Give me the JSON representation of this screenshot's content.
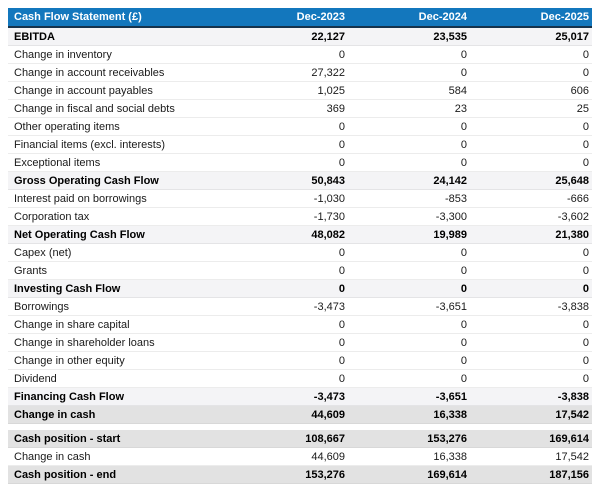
{
  "table": {
    "title": "Cash Flow Statement (£)",
    "columns": [
      "Dec-2023",
      "Dec-2024",
      "Dec-2025"
    ],
    "colors": {
      "header_bg": "#1377bd",
      "header_text": "#ffffff",
      "header_border": "#15334d",
      "subtotal_bg": "#f4f4f6",
      "emphasis_bg": "#e2e2e2"
    },
    "rows": [
      {
        "label": "EBITDA",
        "values": [
          "22,127",
          "23,535",
          "25,017"
        ],
        "style": "subtotal"
      },
      {
        "label": "Change in inventory",
        "values": [
          "0",
          "0",
          "0"
        ],
        "style": "normal"
      },
      {
        "label": "Change in account receivables",
        "values": [
          "27,322",
          "0",
          "0"
        ],
        "style": "normal"
      },
      {
        "label": "Change in account payables",
        "values": [
          "1,025",
          "584",
          "606"
        ],
        "style": "normal"
      },
      {
        "label": "Change in fiscal and social debts",
        "values": [
          "369",
          "23",
          "25"
        ],
        "style": "normal"
      },
      {
        "label": "Other operating items",
        "values": [
          "0",
          "0",
          "0"
        ],
        "style": "normal"
      },
      {
        "label": "Financial items (excl. interests)",
        "values": [
          "0",
          "0",
          "0"
        ],
        "style": "normal"
      },
      {
        "label": "Exceptional items",
        "values": [
          "0",
          "0",
          "0"
        ],
        "style": "normal"
      },
      {
        "label": "Gross Operating Cash Flow",
        "values": [
          "50,843",
          "24,142",
          "25,648"
        ],
        "style": "subtotal"
      },
      {
        "label": "Interest paid on borrowings",
        "values": [
          "-1,030",
          "-853",
          "-666"
        ],
        "style": "normal"
      },
      {
        "label": "Corporation tax",
        "values": [
          "-1,730",
          "-3,300",
          "-3,602"
        ],
        "style": "normal"
      },
      {
        "label": "Net Operating Cash Flow",
        "values": [
          "48,082",
          "19,989",
          "21,380"
        ],
        "style": "subtotal"
      },
      {
        "label": "Capex (net)",
        "values": [
          "0",
          "0",
          "0"
        ],
        "style": "normal"
      },
      {
        "label": "Grants",
        "values": [
          "0",
          "0",
          "0"
        ],
        "style": "normal"
      },
      {
        "label": "Investing Cash Flow",
        "values": [
          "0",
          "0",
          "0"
        ],
        "style": "subtotal"
      },
      {
        "label": "Borrowings",
        "values": [
          "-3,473",
          "-3,651",
          "-3,838"
        ],
        "style": "normal"
      },
      {
        "label": "Change in share capital",
        "values": [
          "0",
          "0",
          "0"
        ],
        "style": "normal"
      },
      {
        "label": "Change in shareholder loans",
        "values": [
          "0",
          "0",
          "0"
        ],
        "style": "normal"
      },
      {
        "label": "Change in other equity",
        "values": [
          "0",
          "0",
          "0"
        ],
        "style": "normal"
      },
      {
        "label": "Dividend",
        "values": [
          "0",
          "0",
          "0"
        ],
        "style": "normal"
      },
      {
        "label": "Financing Cash Flow",
        "values": [
          "-3,473",
          "-3,651",
          "-3,838"
        ],
        "style": "subtotal"
      },
      {
        "label": "Change in cash",
        "values": [
          "44,609",
          "16,338",
          "17,542"
        ],
        "style": "emphasis"
      }
    ],
    "footer_rows": [
      {
        "label": "Cash position - start",
        "values": [
          "108,667",
          "153,276",
          "169,614"
        ],
        "style": "emphasis"
      },
      {
        "label": "Change in cash",
        "values": [
          "44,609",
          "16,338",
          "17,542"
        ],
        "style": "normal"
      },
      {
        "label": "Cash position - end",
        "values": [
          "153,276",
          "169,614",
          "187,156"
        ],
        "style": "emphasis"
      }
    ]
  }
}
